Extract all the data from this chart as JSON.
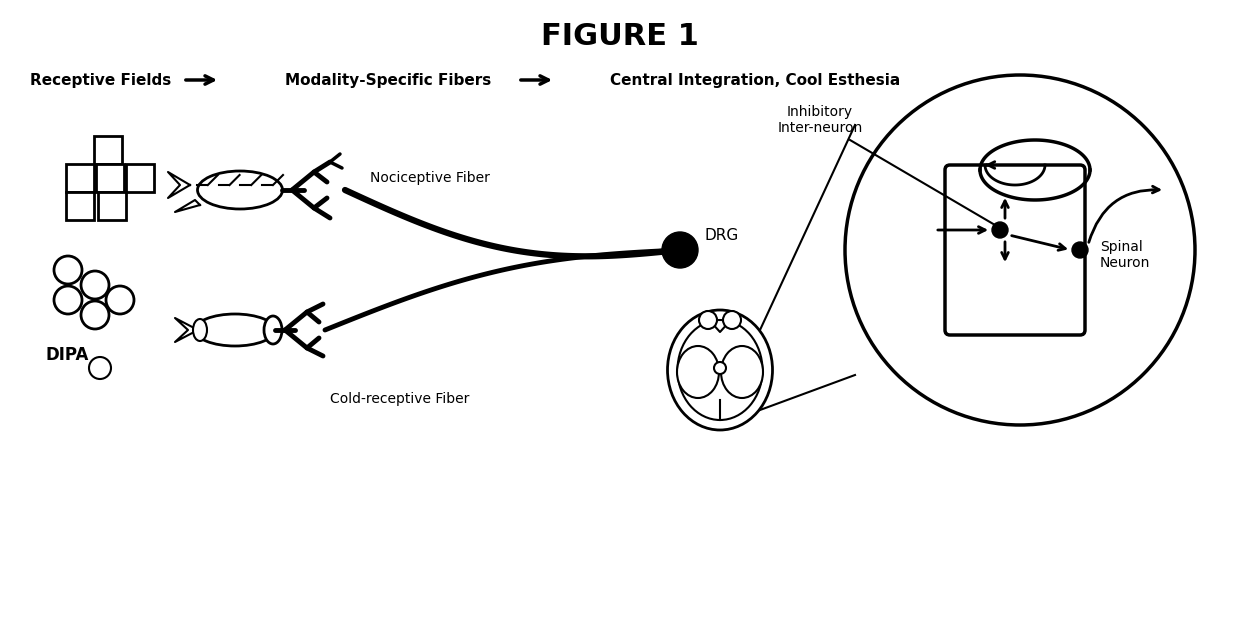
{
  "title": "FIGURE 1",
  "title_fontsize": 22,
  "title_fontweight": "bold",
  "header_label1": "Receptive Fields",
  "header_label2": "Modality-Specific Fibers",
  "header_label3": "Central Integration, Cool Esthesia",
  "header_fontsize": 11,
  "header_fontweight": "bold",
  "label_nociceptive": "Nociceptive Fiber",
  "label_cold": "Cold-receptive Fiber",
  "label_drg": "DRG",
  "label_inhibitory": "Inhibitory\nInter-neuron",
  "label_spinal": "Spinal\nNeuron",
  "label_dipa": "DIPA",
  "bg_color": "#ffffff",
  "line_color": "#000000",
  "lw_thin": 1.5,
  "lw_thick": 3.5
}
